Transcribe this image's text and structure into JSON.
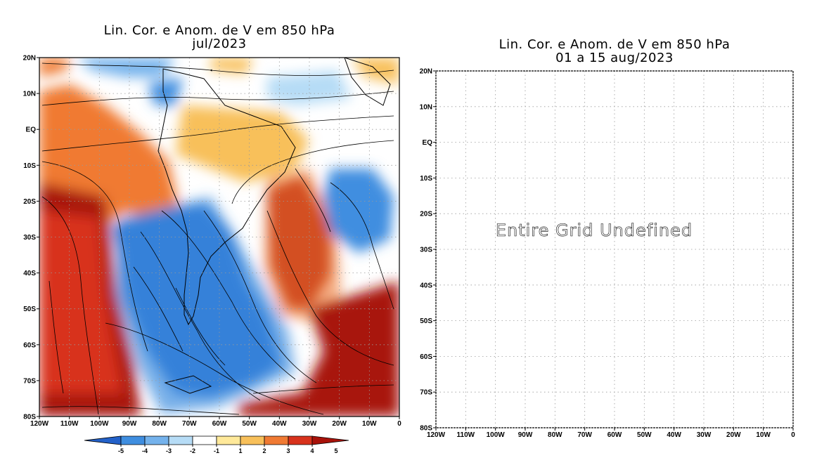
{
  "left_panel": {
    "title_line1": "Lin. Cor. e Anom. de V em 850 hPa",
    "title_line2": "jul/2023",
    "lat_labels": [
      "20N",
      "10N",
      "EQ",
      "10S",
      "20S",
      "30S",
      "40S",
      "50S",
      "60S",
      "70S",
      "80S"
    ],
    "lon_labels": [
      "120W",
      "110W",
      "100W",
      "90W",
      "80W",
      "70W",
      "60W",
      "50W",
      "40W",
      "30W",
      "20W",
      "10W",
      "0"
    ]
  },
  "right_panel": {
    "title_line1": "Lin. Cor. e Anom. de V em 850 hPa",
    "title_line2": "01 a 15 aug/2023",
    "message": "Entire Grid Undefined",
    "lat_labels": [
      "20N",
      "10N",
      "EQ",
      "10S",
      "20S",
      "30S",
      "40S",
      "50S",
      "60S",
      "70S",
      "80S"
    ],
    "lon_labels": [
      "120W",
      "110W",
      "100W",
      "90W",
      "80W",
      "70W",
      "60W",
      "50W",
      "40W",
      "30W",
      "20W",
      "10W",
      "0"
    ]
  },
  "colorbar": {
    "labels": [
      "-5",
      "-4",
      "-3",
      "-2",
      "-1",
      "1",
      "2",
      "3",
      "4",
      "5"
    ],
    "colors": [
      "#2361c9",
      "#3f8ee0",
      "#74b2ec",
      "#b6dcf6",
      "#ffffff",
      "#ffe99a",
      "#f8c05a",
      "#f07a33",
      "#d8321c",
      "#a8120a"
    ]
  }
}
